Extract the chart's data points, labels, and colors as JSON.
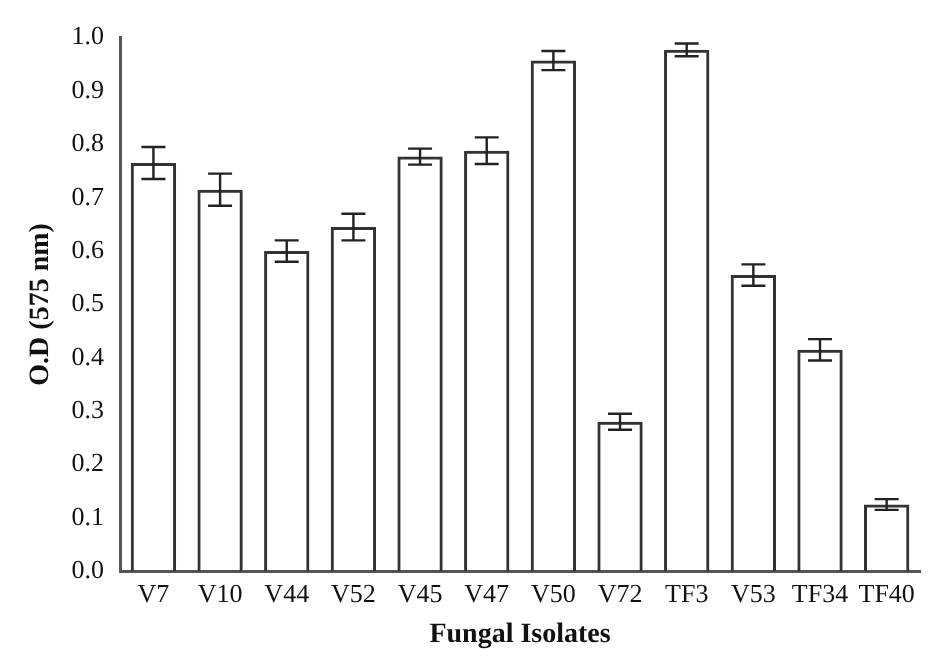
{
  "chart_data": {
    "type": "bar",
    "xlabel": "Fungal Isolates",
    "ylabel": "O.D (575 nm)",
    "categories": [
      "V7",
      "V10",
      "V44",
      "V52",
      "V45",
      "V47",
      "V50",
      "V72",
      "TF3",
      "V53",
      "TF34",
      "TF40"
    ],
    "values": [
      0.765,
      0.715,
      0.6,
      0.645,
      0.777,
      0.788,
      0.957,
      0.28,
      0.977,
      0.555,
      0.415,
      0.125
    ],
    "errors": [
      0.03,
      0.03,
      0.02,
      0.025,
      0.015,
      0.025,
      0.018,
      0.015,
      0.012,
      0.02,
      0.02,
      0.01
    ],
    "color": "#333333",
    "ylim": [
      0,
      1
    ],
    "yticks": [
      {
        "value": 0,
        "label": "0.0"
      },
      0.1,
      0.2,
      0.3,
      0.4,
      0.5,
      0.6,
      0.7,
      0.8,
      0.9,
      {
        "value": 1,
        "label": "1.0"
      }
    ],
    "grid": false,
    "legend": false
  }
}
